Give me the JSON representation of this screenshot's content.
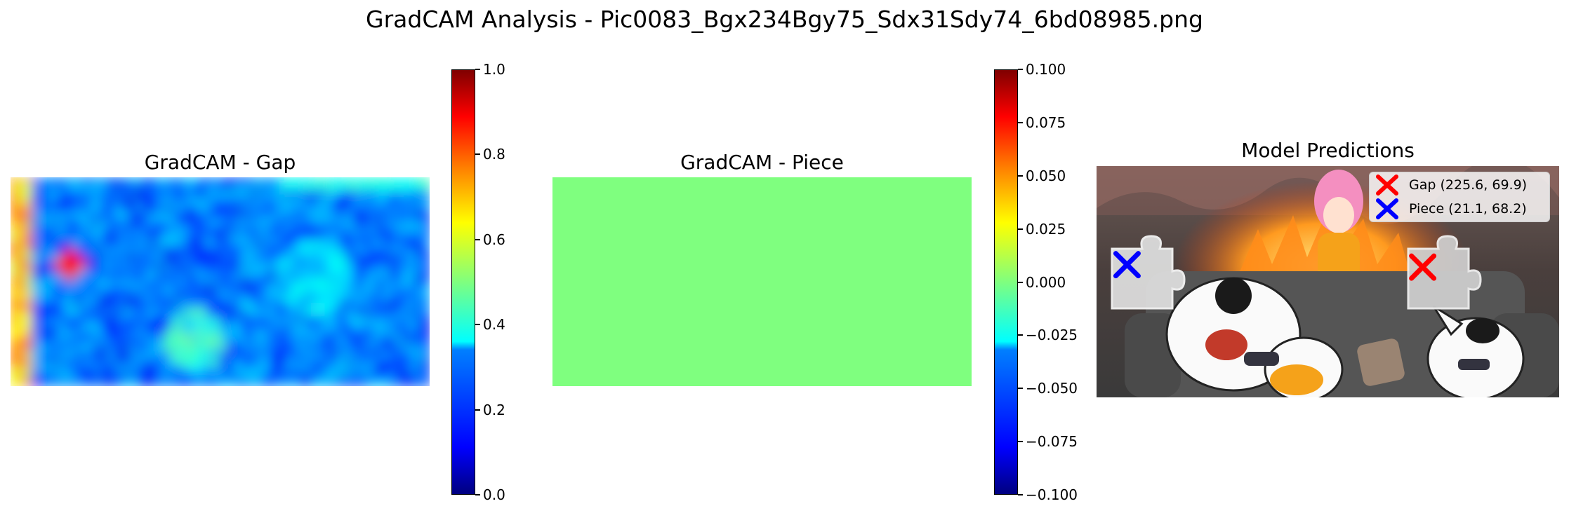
{
  "suptitle": "GradCAM Analysis - Pic0083_Bgx234Bgy75_Sdx31Sdy74_6bd08985.png",
  "chart_data": [
    {
      "type": "heatmap",
      "title": "GradCAM - Gap",
      "colormap": "jet",
      "colorbar": {
        "min": 0.0,
        "max": 1.0,
        "ticks": [
          "0.0",
          "0.2",
          "0.4",
          "0.6",
          "0.8",
          "1.0"
        ]
      },
      "description_values": {
        "left_edge_activation": 0.72,
        "hotspot_value": 0.85,
        "background_level": 0.18,
        "top_right_band": 0.4
      }
    },
    {
      "type": "heatmap",
      "title": "GradCAM - Piece",
      "colormap": "jet",
      "uniform_value": 0.0,
      "colorbar": {
        "min": -0.1,
        "max": 0.1,
        "ticks": [
          "−0.100",
          "−0.075",
          "−0.050",
          "−0.025",
          "0.000",
          "0.025",
          "0.050",
          "0.075",
          "0.100"
        ]
      }
    },
    {
      "type": "scatter",
      "title": "Model Predictions",
      "series": [
        {
          "name": "Gap (225.6, 69.9)",
          "x": 225.6,
          "y": 69.9,
          "marker": "x",
          "color": "#ff0000"
        },
        {
          "name": "Piece (21.1, 68.2)",
          "x": 21.1,
          "y": 68.2,
          "marker": "x",
          "color": "#0000ff"
        }
      ],
      "legend": "top-right"
    }
  ],
  "colors": {
    "jet_dark_blue": "#00007f",
    "jet_red": "#7f0000",
    "uniform_green": "#7fff7f"
  }
}
